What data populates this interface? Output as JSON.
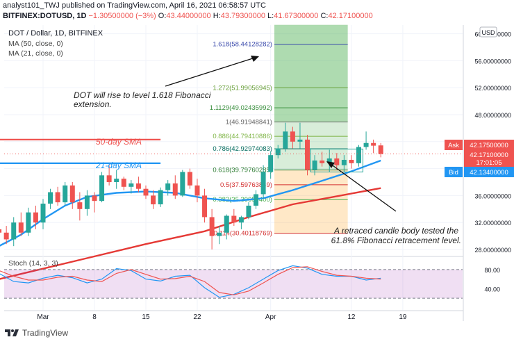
{
  "header": {
    "line1": "analyst101_TWJ published on TradingView.com, April 16, 2021 06:58:57 UTC",
    "line2_symbol": "BITFINEX:DOTUSD, 1D",
    "o": "43.44000000",
    "h": "43.79300000",
    "l": "41.67300000",
    "c": "42.17100000",
    "change": "−1.30500000 (−3%)",
    "up_color": "#26a69a",
    "down_color": "#ef5350"
  },
  "legend": {
    "title": "DOT / Dollar, 1D, BITFINEX",
    "ma50": "MA (50, close, 0)",
    "ma21": "MA (21, close, 0)",
    "stoch": "Stoch (14, 3, 3)"
  },
  "currency": "USD",
  "footer": {
    "brand": "TradingView"
  },
  "price_labels": {
    "ask_label": "Ask",
    "ask": "42.17500000",
    "last": "42.17100000",
    "countdown": "17:01:05",
    "bid_label": "Bid",
    "bid": "42.13400000"
  },
  "annotations": {
    "rise_line1": "DOT will rise to level 1.618 Fibonacci",
    "rise_line2": "extension.",
    "sma50": "50-day SMA",
    "sma21": "21-day SMA",
    "retrace_line1": "A retraced candle body tested the",
    "retrace_line2": "61.8% Fibonacci retracement level."
  },
  "chart_data": [
    {
      "type": "candlestick",
      "title": "DOT / Dollar, 1D, BITFINEX",
      "y_axis_ticks": [
        28,
        32,
        36,
        40,
        44,
        48,
        52,
        56,
        60
      ],
      "y_tick_labels": [
        "28.00000000",
        "32.00000000",
        "36.00000000",
        "40.00000000",
        "44.00000000",
        "48.00000000",
        "52.00000000",
        "56.00000000",
        "60.00000000"
      ],
      "ylim": [
        27,
        61
      ],
      "x_tick_labels": [
        "Mar",
        "8",
        "15",
        "22",
        "Apr",
        "12",
        "19"
      ],
      "x_tick_days": [
        0,
        7,
        14,
        21,
        31,
        42,
        49
      ],
      "x_axis_start": "2021-02-23",
      "candles": [
        {
          "d": -6,
          "o": 31.0,
          "h": 32.5,
          "l": 29.5,
          "c": 30.5
        },
        {
          "d": -5,
          "o": 30.5,
          "h": 31.5,
          "l": 28.8,
          "c": 29.5
        },
        {
          "d": -4,
          "o": 29.5,
          "h": 32.8,
          "l": 28.5,
          "c": 32.0
        },
        {
          "d": -3,
          "o": 32.0,
          "h": 33.5,
          "l": 30.0,
          "c": 30.5
        },
        {
          "d": -2,
          "o": 30.5,
          "h": 34.2,
          "l": 30.0,
          "c": 33.5
        },
        {
          "d": -1,
          "o": 33.5,
          "h": 34.5,
          "l": 31.0,
          "c": 32.0
        },
        {
          "d": 0,
          "o": 32.0,
          "h": 35.5,
          "l": 31.0,
          "c": 34.8
        },
        {
          "d": 1,
          "o": 34.8,
          "h": 37.0,
          "l": 34.0,
          "c": 36.5
        },
        {
          "d": 2,
          "o": 36.5,
          "h": 37.3,
          "l": 34.5,
          "c": 35.0
        },
        {
          "d": 3,
          "o": 35.0,
          "h": 38.0,
          "l": 34.5,
          "c": 37.5
        },
        {
          "d": 4,
          "o": 37.5,
          "h": 38.0,
          "l": 34.0,
          "c": 35.0
        },
        {
          "d": 5,
          "o": 35.0,
          "h": 36.5,
          "l": 32.3,
          "c": 34.0
        },
        {
          "d": 6,
          "o": 34.0,
          "h": 36.8,
          "l": 33.0,
          "c": 36.0
        },
        {
          "d": 7,
          "o": 36.0,
          "h": 36.5,
          "l": 33.5,
          "c": 35.2
        },
        {
          "d": 8,
          "o": 35.2,
          "h": 39.5,
          "l": 35.0,
          "c": 39.0
        },
        {
          "d": 9,
          "o": 39.0,
          "h": 40.5,
          "l": 37.5,
          "c": 38.0
        },
        {
          "d": 10,
          "o": 38.0,
          "h": 39.8,
          "l": 37.0,
          "c": 38.5
        },
        {
          "d": 11,
          "o": 38.5,
          "h": 38.8,
          "l": 36.8,
          "c": 37.3
        },
        {
          "d": 12,
          "o": 37.3,
          "h": 38.3,
          "l": 36.3,
          "c": 37.8
        },
        {
          "d": 13,
          "o": 37.8,
          "h": 38.8,
          "l": 36.5,
          "c": 37.0
        },
        {
          "d": 14,
          "o": 37.0,
          "h": 37.5,
          "l": 35.5,
          "c": 36.0
        },
        {
          "d": 15,
          "o": 36.0,
          "h": 36.8,
          "l": 34.0,
          "c": 34.7
        },
        {
          "d": 16,
          "o": 34.7,
          "h": 37.2,
          "l": 34.3,
          "c": 36.8
        },
        {
          "d": 17,
          "o": 36.8,
          "h": 38.3,
          "l": 36.0,
          "c": 37.8
        },
        {
          "d": 18,
          "o": 37.8,
          "h": 39.0,
          "l": 35.5,
          "c": 36.0
        },
        {
          "d": 19,
          "o": 36.0,
          "h": 39.8,
          "l": 35.8,
          "c": 39.5
        },
        {
          "d": 20,
          "o": 39.5,
          "h": 40.0,
          "l": 37.0,
          "c": 37.5
        },
        {
          "d": 21,
          "o": 37.5,
          "h": 38.5,
          "l": 35.0,
          "c": 36.0
        },
        {
          "d": 22,
          "o": 36.0,
          "h": 37.0,
          "l": 32.0,
          "c": 32.8
        },
        {
          "d": 23,
          "o": 32.8,
          "h": 34.0,
          "l": 28.0,
          "c": 30.0
        },
        {
          "d": 24,
          "o": 30.0,
          "h": 31.5,
          "l": 28.8,
          "c": 30.5
        },
        {
          "d": 25,
          "o": 30.5,
          "h": 33.2,
          "l": 29.5,
          "c": 33.0
        },
        {
          "d": 26,
          "o": 33.0,
          "h": 34.0,
          "l": 31.5,
          "c": 32.0
        },
        {
          "d": 27,
          "o": 32.0,
          "h": 33.0,
          "l": 31.0,
          "c": 32.8
        },
        {
          "d": 28,
          "o": 32.8,
          "h": 35.0,
          "l": 32.5,
          "c": 34.5
        },
        {
          "d": 29,
          "o": 34.5,
          "h": 36.8,
          "l": 34.0,
          "c": 36.2
        },
        {
          "d": 30,
          "o": 36.2,
          "h": 40.5,
          "l": 35.5,
          "c": 39.5
        },
        {
          "d": 31,
          "o": 39.5,
          "h": 42.5,
          "l": 38.5,
          "c": 42.0
        },
        {
          "d": 32,
          "o": 42.0,
          "h": 43.5,
          "l": 41.5,
          "c": 43.0
        },
        {
          "d": 33,
          "o": 43.0,
          "h": 46.8,
          "l": 42.5,
          "c": 45.5
        },
        {
          "d": 34,
          "o": 45.5,
          "h": 46.2,
          "l": 43.0,
          "c": 44.0
        },
        {
          "d": 35,
          "o": 44.0,
          "h": 46.8,
          "l": 43.0,
          "c": 44.3
        },
        {
          "d": 36,
          "o": 44.3,
          "h": 45.0,
          "l": 39.0,
          "c": 39.8
        },
        {
          "d": 37,
          "o": 39.8,
          "h": 42.0,
          "l": 39.0,
          "c": 41.2
        },
        {
          "d": 38,
          "o": 41.2,
          "h": 42.5,
          "l": 40.3,
          "c": 40.8
        },
        {
          "d": 39,
          "o": 40.8,
          "h": 42.8,
          "l": 39.5,
          "c": 41.5
        },
        {
          "d": 40,
          "o": 41.5,
          "h": 42.3,
          "l": 39.8,
          "c": 40.5
        },
        {
          "d": 41,
          "o": 40.5,
          "h": 42.0,
          "l": 39.5,
          "c": 41.3
        },
        {
          "d": 42,
          "o": 41.3,
          "h": 42.0,
          "l": 40.0,
          "c": 40.8
        },
        {
          "d": 43,
          "o": 40.8,
          "h": 43.5,
          "l": 40.3,
          "c": 43.2
        },
        {
          "d": 44,
          "o": 43.2,
          "h": 45.5,
          "l": 42.8,
          "c": 43.8
        },
        {
          "d": 45,
          "o": 43.8,
          "h": 44.3,
          "l": 42.3,
          "c": 43.4
        },
        {
          "d": 46,
          "o": 43.44,
          "h": 43.793,
          "l": 41.673,
          "c": 42.171
        }
      ],
      "ma50": [
        {
          "d": -6,
          "v": 23.6
        },
        {
          "d": 4,
          "v": 26.2
        },
        {
          "d": 14,
          "v": 28.8
        },
        {
          "d": 22,
          "v": 30.7
        },
        {
          "d": 28,
          "v": 32.8
        },
        {
          "d": 34,
          "v": 34.7
        },
        {
          "d": 40,
          "v": 35.9
        },
        {
          "d": 46,
          "v": 37.1
        }
      ],
      "ma21": [
        {
          "d": -6,
          "v": 28.5
        },
        {
          "d": -3,
          "v": 30.2
        },
        {
          "d": 0,
          "v": 32.5
        },
        {
          "d": 3,
          "v": 34.5
        },
        {
          "d": 6,
          "v": 35.8
        },
        {
          "d": 10,
          "v": 36.4
        },
        {
          "d": 14,
          "v": 36.6
        },
        {
          "d": 18,
          "v": 36.4
        },
        {
          "d": 22,
          "v": 35.6
        },
        {
          "d": 26,
          "v": 35.2
        },
        {
          "d": 30,
          "v": 35.6
        },
        {
          "d": 34,
          "v": 36.8
        },
        {
          "d": 38,
          "v": 38.2
        },
        {
          "d": 42,
          "v": 39.6
        },
        {
          "d": 46,
          "v": 41.2
        }
      ],
      "sma_reference_lines": [
        {
          "name": "50-day SMA",
          "v": 44.3,
          "d_start": -6,
          "d_end": 16,
          "color": "#ef5350"
        },
        {
          "name": "21-day SMA",
          "v": 40.8,
          "d_start": -6,
          "d_end": 16,
          "color": "#2196f3"
        }
      ],
      "fibonacci": {
        "d_start": 31.5,
        "d_end": 41.5,
        "levels": [
          {
            "ratio": "0.114",
            "price": 30.40118769,
            "label": "0.114(30.40118769)",
            "color": "#d32f2f"
          },
          {
            "ratio": "0.382",
            "price": 35.399594,
            "label": "0.382(35.39959400)",
            "color": "#4caf50"
          },
          {
            "ratio": "0.5",
            "price": 37.59763849,
            "label": "0.5(37.59763849)",
            "color": "#d32f2f"
          },
          {
            "ratio": "0.618",
            "price": 39.79760285,
            "label": "0.618(39.79760285)",
            "color": "#2e7d32"
          },
          {
            "ratio": "0.786",
            "price": 42.92974083,
            "label": "0.786(42.92974083)",
            "color": "#00695c"
          },
          {
            "ratio": "0.886",
            "price": 44.79410886,
            "label": "0.886(44.79410886)",
            "color": "#7cb342"
          },
          {
            "ratio": "1",
            "price": 46.91948841,
            "label": "1(46.91948841)",
            "color": "#616161"
          },
          {
            "ratio": "1.1129",
            "price": 49.02435992,
            "label": "1.1129(49.02435992)",
            "color": "#388e3c"
          },
          {
            "ratio": "1.272",
            "price": 51.99056945,
            "label": "1.272(51.99056945)",
            "color": "#689f38"
          },
          {
            "ratio": "1.618",
            "price": 58.44128282,
            "label": "1.618(58.44128282)",
            "color": "#3949ab"
          }
        ]
      }
    },
    {
      "type": "line",
      "title": "Stoch (14, 3, 3)",
      "y_axis_ticks": [
        40,
        80
      ],
      "y_tick_labels": [
        "40.00",
        "80.00"
      ],
      "ylim": [
        0,
        100
      ],
      "bands": [
        20,
        80
      ],
      "series": [
        {
          "color": "#2196f3",
          "x": [
            -6,
            -4,
            -2,
            0,
            2,
            4,
            6,
            8,
            10,
            12,
            14,
            16,
            18,
            20,
            22,
            24,
            26,
            28,
            30,
            32,
            34,
            36,
            38,
            40,
            42,
            44,
            46
          ],
          "y": [
            72,
            55,
            52,
            62,
            68,
            63,
            52,
            60,
            82,
            78,
            60,
            56,
            66,
            68,
            42,
            22,
            28,
            42,
            60,
            78,
            88,
            83,
            70,
            66,
            66,
            58,
            62
          ]
        },
        {
          "color": "#ef5350",
          "x": [
            -6,
            -4,
            -2,
            0,
            2,
            4,
            6,
            8,
            10,
            12,
            14,
            16,
            18,
            20,
            22,
            24,
            26,
            28,
            30,
            32,
            34,
            36,
            38,
            40,
            42,
            44,
            46
          ],
          "y": [
            78,
            66,
            58,
            58,
            64,
            66,
            58,
            55,
            72,
            80,
            70,
            60,
            61,
            66,
            55,
            32,
            27,
            35,
            52,
            70,
            84,
            86,
            76,
            68,
            66,
            62,
            60
          ]
        }
      ]
    }
  ]
}
